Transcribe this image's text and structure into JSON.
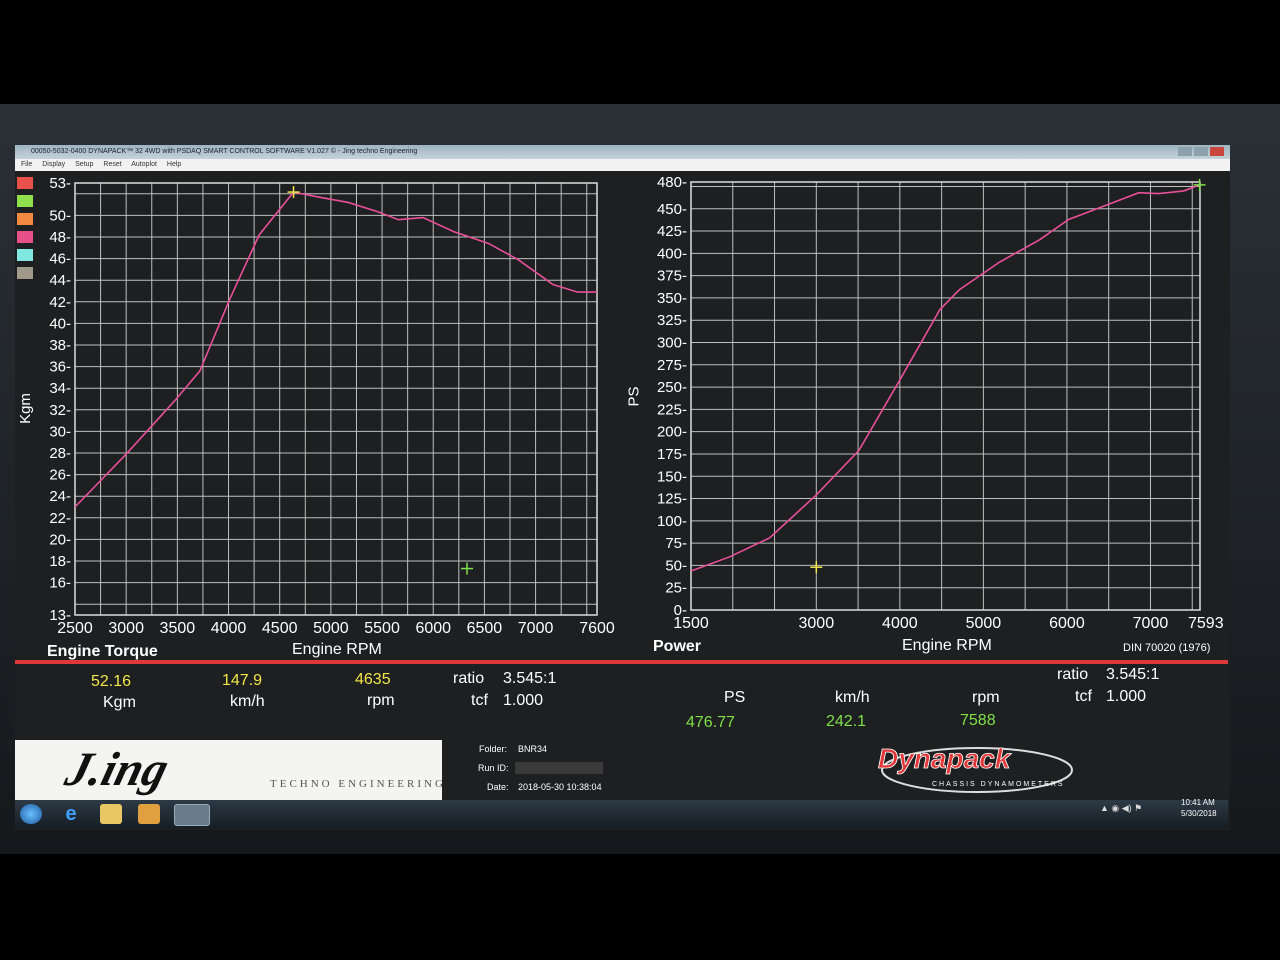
{
  "window": {
    "title": "00050-5032-0400 DYNAPACK™ 32 4WD with PSDAQ SMART CONTROL SOFTWARE V1.027 © - Jing techno Engineering",
    "menu": [
      "File",
      "Display",
      "Setup",
      "Reset",
      "Autoplot",
      "Help"
    ]
  },
  "legend_swatches": [
    "#e8504a",
    "#8fe04a",
    "#f08a40",
    "#e8508a",
    "#80e8e0",
    "#a09888"
  ],
  "colors": {
    "curve": "#e8509a",
    "cursor_yellow": "#f3e64a",
    "cursor_green": "#7fe04a",
    "grid": "#bfbfbf",
    "accent_red": "#e03838"
  },
  "chart_data": [
    {
      "type": "line",
      "title": "Engine Torque",
      "xlabel": "Engine RPM",
      "ylabel": "Kgm",
      "xlim": [
        2500,
        7600
      ],
      "ylim": [
        13,
        53
      ],
      "grid": true,
      "x_ticks": [
        2500,
        3000,
        3500,
        4000,
        4500,
        5000,
        5500,
        6000,
        6500,
        7000,
        7600
      ],
      "y_ticks": [
        13,
        16,
        18,
        20,
        22,
        24,
        26,
        28,
        30,
        32,
        34,
        36,
        38,
        40,
        42,
        44,
        46,
        48,
        50,
        53
      ],
      "points": [
        [
          2500,
          23.0
        ],
        [
          2990,
          27.8
        ],
        [
          3480,
          32.9
        ],
        [
          3720,
          35.6
        ],
        [
          4010,
          42.2
        ],
        [
          4300,
          48.2
        ],
        [
          4635,
          52.16
        ],
        [
          4880,
          51.7
        ],
        [
          5170,
          51.2
        ],
        [
          5470,
          50.3
        ],
        [
          5660,
          49.6
        ],
        [
          5900,
          49.8
        ],
        [
          6200,
          48.5
        ],
        [
          6540,
          47.4
        ],
        [
          6830,
          45.9
        ],
        [
          7170,
          43.6
        ],
        [
          7410,
          42.9
        ],
        [
          7600,
          42.9
        ]
      ],
      "cursors": [
        {
          "color": "yellow",
          "x": 4635,
          "y": 52.16
        },
        {
          "color": "green",
          "x": 6330,
          "y": 17.3
        }
      ]
    },
    {
      "type": "line",
      "title": "Power",
      "xlabel": "Engine RPM",
      "ylabel": "PS",
      "xlim": [
        1500,
        7593
      ],
      "ylim": [
        0,
        480
      ],
      "grid": true,
      "x_ticks": [
        1500,
        3000,
        4000,
        5000,
        6000,
        7000,
        7593
      ],
      "y_ticks": [
        0,
        25,
        50,
        75,
        100,
        125,
        150,
        175,
        200,
        225,
        250,
        275,
        300,
        325,
        350,
        375,
        400,
        425,
        450,
        480
      ],
      "points": [
        [
          1500,
          43.8
        ],
        [
          1960,
          59.5
        ],
        [
          2440,
          80.8
        ],
        [
          3000,
          129
        ],
        [
          3510,
          179
        ],
        [
          4000,
          258
        ],
        [
          4480,
          337
        ],
        [
          4710,
          359
        ],
        [
          5190,
          390
        ],
        [
          5670,
          415
        ],
        [
          6020,
          438
        ],
        [
          6500,
          455
        ],
        [
          6860,
          468
        ],
        [
          7100,
          467
        ],
        [
          7400,
          470
        ],
        [
          7588,
          476.77
        ]
      ],
      "cursors": [
        {
          "color": "yellow",
          "x": 3000,
          "y": 48
        },
        {
          "color": "green",
          "x": 7588,
          "y": 476.77
        }
      ],
      "note": "DIN 70020 (1976)"
    }
  ],
  "readout_left": {
    "kgm": "52.16",
    "kgm_unit": "Kgm",
    "kmh": "147.9",
    "kmh_unit": "km/h",
    "rpm": "4635",
    "rpm_unit": "rpm",
    "ratio_label": "ratio",
    "ratio": "3.545:1",
    "tcf_label": "tcf",
    "tcf": "1.000"
  },
  "readout_right": {
    "ps_unit": "PS",
    "ps": "476.77",
    "kmh_unit": "km/h",
    "kmh": "242.1",
    "rpm_unit": "rpm",
    "rpm": "7588",
    "ratio_label": "ratio",
    "ratio": "3.545:1",
    "tcf_label": "tcf",
    "tcf": "1.000"
  },
  "run_info": {
    "folder_label": "Folder:",
    "folder": "BNR34",
    "runid_label": "Run ID:",
    "runid": "",
    "date_label": "Date:",
    "date": "2018-05-30 10:38:04"
  },
  "logo_left": "J.ing TECHNO ENGINEERING",
  "logo_right": "Dynapack CHASSIS DYNAMOMETERS",
  "taskbar": {
    "time": "10:41 AM",
    "date": "5/30/2018"
  }
}
